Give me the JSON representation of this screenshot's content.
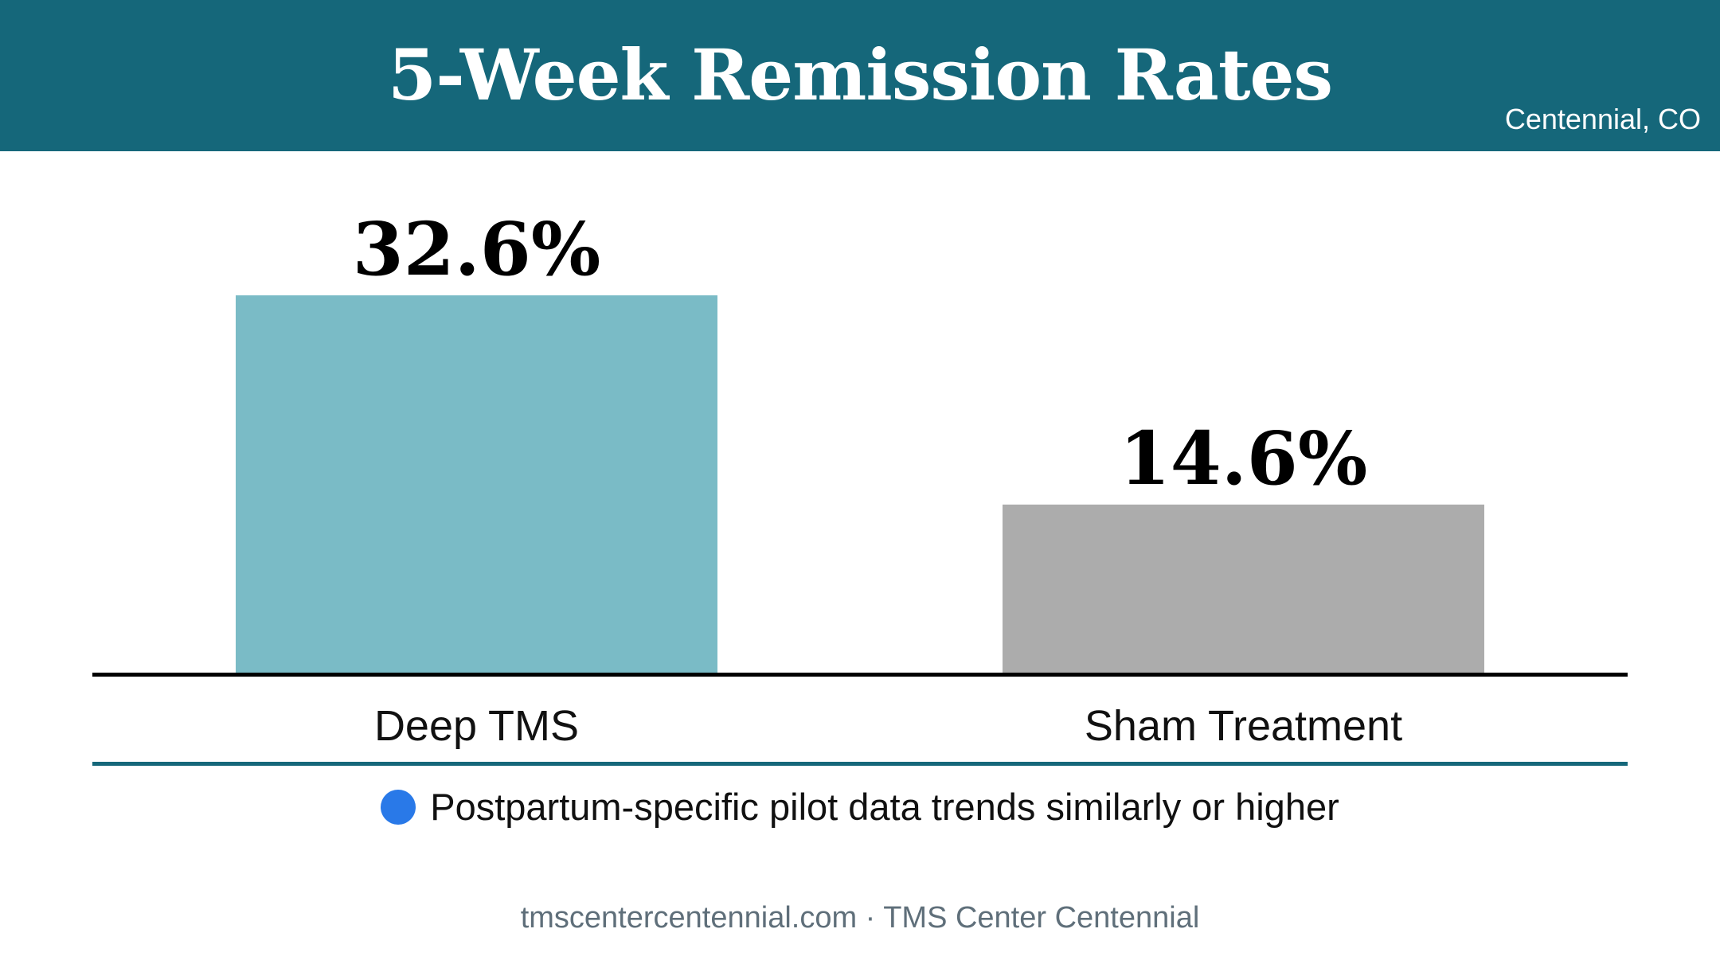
{
  "header": {
    "title": "5-Week Remission Rates",
    "location": "Centennial, CO"
  },
  "chart_data": {
    "type": "bar",
    "title": "5-Week Remission Rates",
    "categories": [
      "Deep TMS",
      "Sham Treatment"
    ],
    "values": [
      32.6,
      14.6
    ],
    "value_labels": [
      "32.6%",
      "14.6%"
    ],
    "bar_colors": [
      "#7abbc6",
      "#acacac"
    ],
    "unit": "%",
    "ylim": [
      0,
      40
    ],
    "grid": false,
    "xlabel": "",
    "ylabel": ""
  },
  "note": {
    "text": "Postpartum-specific pilot data trends similarly or higher",
    "dot_color": "#2979e8"
  },
  "footer": {
    "text": "tmscentercentennial.com · TMS Center Centennial"
  },
  "colors": {
    "header_bg": "#15677a",
    "divider": "#15677a"
  }
}
